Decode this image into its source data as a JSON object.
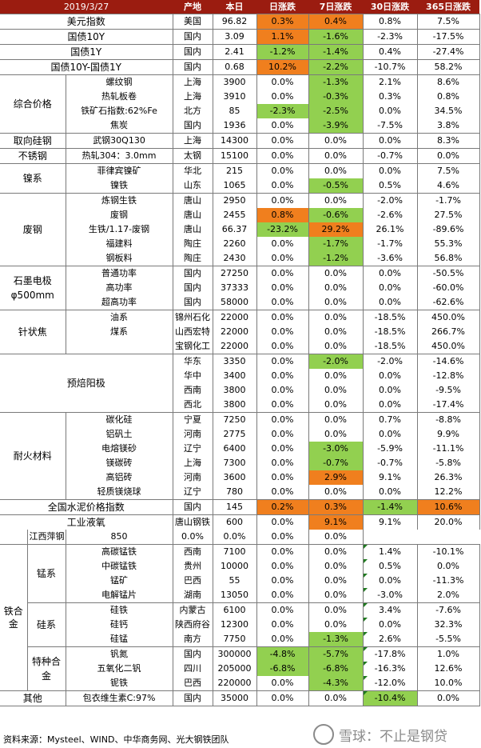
{
  "header": {
    "date": "2019/3/27",
    "origin": "产地",
    "today": "本日",
    "d1": "日涨跌",
    "d7": "7日涨跌",
    "d30": "30日涨跌",
    "d365": "365日涨跌"
  },
  "rows": [
    {
      "group": "美元指数",
      "item": "",
      "origin": "美国",
      "today": "96.82",
      "d1": "0.3%",
      "d7": "0.4%",
      "d30": "0.8%",
      "d365": "7.5%",
      "c1": "or",
      "c7": "or"
    },
    {
      "group": "国债10Y",
      "item": "",
      "origin": "国内",
      "today": "3.09",
      "d1": "1.1%",
      "d7": "-1.6%",
      "d30": "-2.3%",
      "d365": "-17.5%",
      "c1": "or",
      "c7": "gr"
    },
    {
      "group": "国债1Y",
      "item": "",
      "origin": "国内",
      "today": "2.41",
      "d1": "-1.2%",
      "d7": "-1.4%",
      "d30": "0.4%",
      "d365": "-27.4%",
      "c1": "gr",
      "c7": "gr"
    },
    {
      "group": "国债10Y-国债1Y",
      "item": "",
      "origin": "国内",
      "today": "0.68",
      "d1": "10.2%",
      "d7": "-2.2%",
      "d30": "-10.7%",
      "d365": "58.2%",
      "c1": "or",
      "c7": "gr"
    },
    {
      "group": "综合价格",
      "item": "螺纹钢",
      "origin": "上海",
      "today": "3900",
      "d1": "0.0%",
      "d7": "-1.3%",
      "d30": "2.1%",
      "d365": "8.6%",
      "c7": "gr"
    },
    {
      "item": "热轧板卷",
      "origin": "上海",
      "today": "3910",
      "d1": "0.0%",
      "d7": "-0.3%",
      "d30": "0.3%",
      "d365": "0.8%",
      "c7": "gr"
    },
    {
      "item": "铁矿石指数:62%Fe",
      "origin": "北方",
      "today": "85",
      "d1": "-2.3%",
      "d7": "-2.5%",
      "d30": "0.0%",
      "d365": "34.5%",
      "c1": "gr",
      "c7": "gr"
    },
    {
      "item": "焦炭",
      "origin": "国内",
      "today": "1936",
      "d1": "0.0%",
      "d7": "-3.9%",
      "d30": "-7.5%",
      "d365": "3.8%",
      "c7": "gr"
    },
    {
      "group": "取向硅钢",
      "item": "武钢30Q130",
      "origin": "上海",
      "today": "14300",
      "d1": "0.0%",
      "d7": "0.0%",
      "d30": "0.0%",
      "d365": "8.3%"
    },
    {
      "group": "不锈钢",
      "item": "热轧304：3.0mm",
      "origin": "太钢",
      "today": "15100",
      "d1": "0.0%",
      "d7": "0.0%",
      "d30": "-0.7%",
      "d365": "0.0%"
    },
    {
      "group": "镍系",
      "item": "菲律宾镍矿",
      "origin": "华北",
      "today": "215",
      "d1": "0.0%",
      "d7": "0.0%",
      "d30": "0.0%",
      "d365": "7.5%"
    },
    {
      "item": "镍铁",
      "origin": "山东",
      "today": "1065",
      "d1": "0.0%",
      "d7": "-0.5%",
      "d30": "0.5%",
      "d365": "4.6%",
      "c7": "gr"
    },
    {
      "group": "废钢",
      "item": "炼钢生铁",
      "origin": "唐山",
      "today": "2950",
      "d1": "0.0%",
      "d7": "0.0%",
      "d30": "-2.0%",
      "d365": "-1.7%"
    },
    {
      "item": "废钢",
      "origin": "唐山",
      "today": "2455",
      "d1": "0.8%",
      "d7": "-0.6%",
      "d30": "-2.6%",
      "d365": "27.5%",
      "c1": "or",
      "c7": "gr"
    },
    {
      "item": "生铁/1.17-废钢",
      "origin": "唐山",
      "today": "66.37",
      "d1": "-23.2%",
      "d7": "29.2%",
      "d30": "26.1%",
      "d365": "-89.6%",
      "c1": "gr",
      "c7": "or"
    },
    {
      "item": "福建料",
      "origin": "陶庄",
      "today": "2260",
      "d1": "0.0%",
      "d7": "-1.7%",
      "d30": "-1.7%",
      "d365": "55.3%",
      "c7": "gr"
    },
    {
      "item": "钢板料",
      "origin": "陶庄",
      "today": "2430",
      "d1": "0.0%",
      "d7": "-1.2%",
      "d30": "-3.6%",
      "d365": "56.8%",
      "c7": "gr"
    },
    {
      "group": "石墨电极 φ500mm",
      "item": "普通功率",
      "origin": "国内",
      "today": "27250",
      "d1": "0.0%",
      "d7": "0.0%",
      "d30": "0.0%",
      "d365": "-50.5%"
    },
    {
      "item": "高功率",
      "origin": "国内",
      "today": "37333",
      "d1": "0.0%",
      "d7": "0.0%",
      "d30": "0.0%",
      "d365": "-60.0%"
    },
    {
      "item": "超高功率",
      "origin": "国内",
      "today": "58000",
      "d1": "0.0%",
      "d7": "0.0%",
      "d30": "0.0%",
      "d365": "-62.6%"
    },
    {
      "group": "针状焦",
      "item": "油系",
      "origin": "锦州石化",
      "today": "22000",
      "d1": "0.0%",
      "d7": "0.0%",
      "d30": "-18.5%",
      "d365": "450.0%"
    },
    {
      "item": "煤系",
      "origin": "山西宏特",
      "today": "22000",
      "d1": "0.0%",
      "d7": "0.0%",
      "d30": "-18.5%",
      "d365": "266.7%"
    },
    {
      "item": "",
      "origin": "宝钢化工",
      "today": "22000",
      "d1": "0.0%",
      "d7": "0.0%",
      "d30": "-18.5%",
      "d365": "450.0%"
    },
    {
      "group": "预焙阳极",
      "item": "",
      "origin": "华东",
      "today": "3350",
      "d1": "0.0%",
      "d7": "-2.0%",
      "d30": "-2.0%",
      "d365": "-14.6%",
      "c7": "gr"
    },
    {
      "item": "",
      "origin": "华中",
      "today": "3400",
      "d1": "0.0%",
      "d7": "0.0%",
      "d30": "0.0%",
      "d365": "-12.8%"
    },
    {
      "item": "",
      "origin": "西南",
      "today": "3800",
      "d1": "0.0%",
      "d7": "0.0%",
      "d30": "0.0%",
      "d365": "-9.5%"
    },
    {
      "item": "",
      "origin": "西北",
      "today": "3800",
      "d1": "0.0%",
      "d7": "0.0%",
      "d30": "0.0%",
      "d365": "-17.4%"
    },
    {
      "group": "耐火材料",
      "item": "碳化硅",
      "origin": "宁夏",
      "today": "7250",
      "d1": "0.0%",
      "d7": "0.0%",
      "d30": "0.7%",
      "d365": "-8.8%"
    },
    {
      "item": "铝矾土",
      "origin": "河南",
      "today": "2775",
      "d1": "0.0%",
      "d7": "0.0%",
      "d30": "0.0%",
      "d365": "9.9%"
    },
    {
      "item": "电熔镁砂",
      "origin": "辽宁",
      "today": "6400",
      "d1": "0.0%",
      "d7": "-3.0%",
      "d30": "-5.9%",
      "d365": "-11.1%",
      "c7": "gr"
    },
    {
      "item": "镁碳砖",
      "origin": "上海",
      "today": "7300",
      "d1": "0.0%",
      "d7": "-0.7%",
      "d30": "-0.7%",
      "d365": "-5.8%",
      "c7": "gr"
    },
    {
      "item": "高铝砖",
      "origin": "河南",
      "today": "3600",
      "d1": "0.0%",
      "d7": "2.9%",
      "d30": "9.1%",
      "d365": "26.3%",
      "c7": "or"
    },
    {
      "item": "轻质镁烧球",
      "origin": "辽宁",
      "today": "780",
      "d1": "0.0%",
      "d7": "0.0%",
      "d30": "0.0%",
      "d365": "12.2%"
    },
    {
      "group": "全国水泥价格指数",
      "item": "",
      "origin": "国内",
      "today": "145",
      "d1": "0.2%",
      "d7": "0.3%",
      "d30": "-1.4%",
      "d365": "10.6%",
      "c1": "or",
      "c7": "or",
      "c30": "gr",
      "c365": "or"
    },
    {
      "group": "工业液氧",
      "item": "",
      "origin": "唐山钢铁",
      "today": "600",
      "d1": "0.0%",
      "d7": "9.1%",
      "d30": "9.1%",
      "d365": "20.0%",
      "c7": "or"
    },
    {
      "item": "",
      "origin": "江西萍钢",
      "today": "850",
      "d1": "0.0%",
      "d7": "0.0%",
      "d30": "0.0%",
      "d365": "0.0%"
    },
    {
      "group": "锰系",
      "item": "高碳锰铁",
      "origin": "西南",
      "today": "7100",
      "d1": "0.0%",
      "d7": "0.0%",
      "d30": "1.4%",
      "d365": "-10.1%"
    },
    {
      "item": "中碳锰铁",
      "origin": "贵州",
      "today": "10000",
      "d1": "0.0%",
      "d7": "0.0%",
      "d30": "0.5%",
      "d365": "0.0%"
    },
    {
      "item": "锰矿",
      "origin": "巴西",
      "today": "55",
      "d1": "0.0%",
      "d7": "0.0%",
      "d30": "0.0%",
      "d365": "-11.3%"
    },
    {
      "item": "电解锰片",
      "origin": "湖南",
      "today": "13050",
      "d1": "0.0%",
      "d7": "0.0%",
      "d30": "-3.0%",
      "d365": "2.0%"
    },
    {
      "group": "硅系",
      "item": "硅铁",
      "origin": "内蒙古",
      "today": "6100",
      "d1": "0.0%",
      "d7": "0.0%",
      "d30": "3.4%",
      "d365": "-7.6%"
    },
    {
      "item": "硅钙",
      "origin": "陕西府谷",
      "today": "12300",
      "d1": "0.0%",
      "d7": "0.0%",
      "d30": "0.0%",
      "d365": "32.3%"
    },
    {
      "item": "硅锰",
      "origin": "南方",
      "today": "7750",
      "d1": "0.0%",
      "d7": "-1.3%",
      "d30": "2.6%",
      "d365": "-5.5%",
      "c7": "gr"
    },
    {
      "group": "特种合金",
      "item": "钒氮",
      "origin": "国内",
      "today": "300000",
      "d1": "-4.8%",
      "d7": "-5.7%",
      "d30": "-17.8%",
      "d365": "1.0%",
      "c1": "gr",
      "c7": "gr"
    },
    {
      "item": "五氧化二钒",
      "origin": "四川",
      "today": "205000",
      "d1": "-6.8%",
      "d7": "-6.8%",
      "d30": "-16.3%",
      "d365": "12.6%",
      "c1": "gr",
      "c7": "gr"
    },
    {
      "item": "铌铁",
      "origin": "巴西",
      "today": "220000",
      "d1": "0.0%",
      "d7": "-4.3%",
      "d30": "-12.0%",
      "d365": "10.0%",
      "c7": "gr"
    },
    {
      "group": "其他",
      "item": "包衣维生素C:97%",
      "origin": "国内",
      "today": "35000",
      "d1": "0.0%",
      "d7": "0.0%",
      "d30": "-10.4%",
      "d365": "0.0%",
      "c30": "gr"
    }
  ],
  "alloy_label": "铁合金",
  "footer": {
    "source": "资料来源：Mysteel、WIND、中华商务网、光大钢铁团队",
    "watermark": "雪球：不止是钢贷"
  }
}
